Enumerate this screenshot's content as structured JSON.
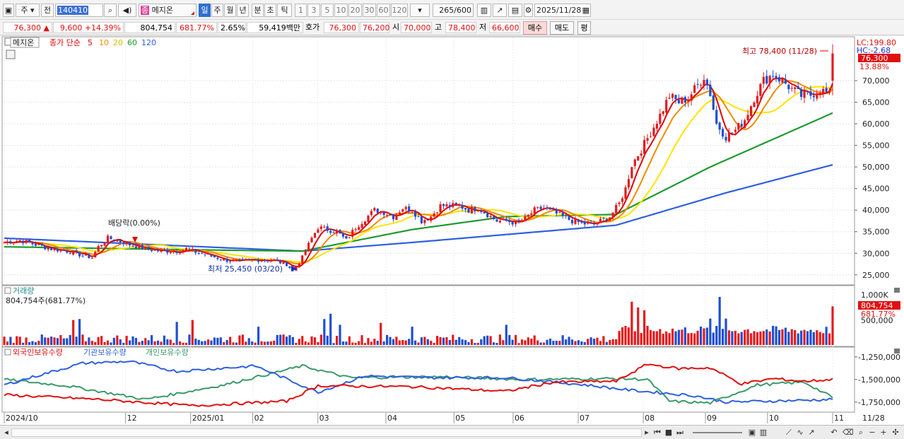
{
  "toolbar": {
    "market": "주",
    "prev": "전",
    "code": "140410",
    "stock_name": "메지온",
    "stock_badge": "종",
    "periods": [
      "일",
      "주",
      "월",
      "년",
      "분",
      "초",
      "틱"
    ],
    "active_period": "일",
    "intervals": [
      "1",
      "3",
      "5",
      "10",
      "20",
      "30",
      "60",
      "120"
    ],
    "count": "265",
    "count_total": "/600",
    "date": "2025/11/28"
  },
  "quote": {
    "price": "76,300",
    "change": "9,600",
    "change_pct": "+14.39%",
    "volume": "804,754",
    "volume_ratio": "681.77%",
    "turnover": "2.65%",
    "amount": "59,419백만",
    "ask_label": "호가",
    "ask": "76,300",
    "bid": "76,200",
    "open_label": "시",
    "open": "70,000",
    "high_label": "고",
    "high": "78,400",
    "low_label": "저",
    "low": "66,600",
    "buy_label": "매수",
    "sell_label": "매도",
    "eval_label": "평"
  },
  "chart_labels": {
    "stock_tag": "메지온",
    "ma_title": "종가 단순",
    "ma_periods": [
      "5",
      "10",
      "20",
      "60",
      "120"
    ],
    "lc": "LC:199.80",
    "hc": "HC:-2.68",
    "last_price_tag": "76,300",
    "last_pct_tag": "13.88%",
    "high_note": "최고 78,400 (11/28)",
    "low_note": "최저 25,450 (03/20)",
    "dividend_note": "배당락(0.00%)",
    "price_axis": [
      "70,000",
      "65,000",
      "60,000",
      "55,000",
      "50,000",
      "45,000",
      "40,000",
      "35,000",
      "30,000",
      "25,000"
    ],
    "volume_title": "거래량",
    "volume_value": "804,754주(681.77%)",
    "volume_axis": [
      "1,000K",
      "500,000"
    ],
    "volume_tag": "804,754",
    "volume_pct_tag": "681.77%",
    "holders": [
      "외국인보유수량",
      "기관보유수량",
      "개인보유수량"
    ],
    "holders_axis": [
      "-1,250,000",
      "-1,500,000",
      "-1,750,000"
    ],
    "x_axis": [
      "2024/10",
      "12",
      "2025/01",
      "02",
      "03",
      "04",
      "05",
      "06",
      "07",
      "08",
      "09",
      "10",
      "11"
    ],
    "x_last": "11/28"
  },
  "colors": {
    "up": "#e41a1c",
    "down": "#1f4fd0",
    "ma5": "#e10000",
    "ma10": "#f08a00",
    "ma20": "#ffe400",
    "ma60": "#1f9a2e",
    "ma120": "#2f5fe0",
    "foreign": "#e01010",
    "institution": "#2f5fe0",
    "individual": "#3a9a6a"
  },
  "chart_data": {
    "type": "candlestick",
    "ylim": [
      23000,
      80000
    ],
    "close_anchors": [
      [
        0,
        32500
      ],
      [
        5,
        33000
      ],
      [
        10,
        32000
      ],
      [
        15,
        31000
      ],
      [
        20,
        30500
      ],
      [
        25,
        29500
      ],
      [
        28,
        29000
      ],
      [
        30,
        31500
      ],
      [
        33,
        33500
      ],
      [
        36,
        33000
      ],
      [
        40,
        32000
      ],
      [
        45,
        31000
      ],
      [
        50,
        30500
      ],
      [
        55,
        30500
      ],
      [
        58,
        31000
      ],
      [
        60,
        30500
      ],
      [
        65,
        29500
      ],
      [
        70,
        28500
      ],
      [
        75,
        28000
      ],
      [
        80,
        28500
      ],
      [
        85,
        28500
      ],
      [
        90,
        27500
      ],
      [
        92,
        26000
      ],
      [
        95,
        29000
      ],
      [
        98,
        33500
      ],
      [
        100,
        36000
      ],
      [
        103,
        35500
      ],
      [
        106,
        35000
      ],
      [
        109,
        33000
      ],
      [
        112,
        36000
      ],
      [
        115,
        38000
      ],
      [
        118,
        40000
      ],
      [
        121,
        39500
      ],
      [
        124,
        38500
      ],
      [
        127,
        40500
      ],
      [
        130,
        40000
      ],
      [
        133,
        37500
      ],
      [
        136,
        38500
      ],
      [
        139,
        41000
      ],
      [
        142,
        41000
      ],
      [
        145,
        41000
      ],
      [
        148,
        40000
      ],
      [
        151,
        40500
      ],
      [
        154,
        39000
      ],
      [
        157,
        37500
      ],
      [
        160,
        37500
      ],
      [
        163,
        37000
      ],
      [
        166,
        38000
      ],
      [
        169,
        40000
      ],
      [
        172,
        40500
      ],
      [
        175,
        39500
      ],
      [
        178,
        38500
      ],
      [
        181,
        37500
      ],
      [
        184,
        37000
      ],
      [
        187,
        36500
      ],
      [
        190,
        37500
      ],
      [
        193,
        38500
      ],
      [
        196,
        41500
      ],
      [
        198,
        45000
      ],
      [
        200,
        50500
      ],
      [
        203,
        54000
      ],
      [
        206,
        58000
      ],
      [
        209,
        62000
      ],
      [
        212,
        66500
      ],
      [
        215,
        65000
      ],
      [
        218,
        66000
      ],
      [
        221,
        69000
      ],
      [
        223,
        71000
      ],
      [
        225,
        67000
      ],
      [
        227,
        60000
      ],
      [
        230,
        57000
      ],
      [
        233,
        58500
      ],
      [
        236,
        61000
      ],
      [
        239,
        66000
      ],
      [
        242,
        70000
      ],
      [
        245,
        71500
      ],
      [
        248,
        70000
      ],
      [
        251,
        68000
      ],
      [
        254,
        66500
      ],
      [
        257,
        66700
      ],
      [
        260,
        68000
      ],
      [
        263,
        66700
      ],
      [
        264,
        76300
      ]
    ],
    "ma60_anchors": [
      [
        0,
        31500
      ],
      [
        60,
        30800
      ],
      [
        95,
        30500
      ],
      [
        130,
        35500
      ],
      [
        160,
        38500
      ],
      [
        195,
        39000
      ],
      [
        225,
        50000
      ],
      [
        264,
        62500
      ]
    ],
    "ma120_anchors": [
      [
        0,
        33500
      ],
      [
        95,
        30500
      ],
      [
        130,
        32500
      ],
      [
        195,
        36500
      ],
      [
        230,
        44000
      ],
      [
        264,
        50500
      ]
    ],
    "volume_spikes": [
      [
        22,
        520
      ],
      [
        24,
        540
      ],
      [
        55,
        480
      ],
      [
        60,
        520
      ],
      [
        81,
        380
      ],
      [
        102,
        540
      ],
      [
        104,
        650
      ],
      [
        107,
        420
      ],
      [
        120,
        460
      ],
      [
        130,
        380
      ],
      [
        160,
        420
      ],
      [
        200,
        900
      ],
      [
        202,
        780
      ],
      [
        204,
        720
      ],
      [
        225,
        550
      ],
      [
        228,
        1000
      ],
      [
        230,
        550
      ],
      [
        264,
        804
      ]
    ],
    "holders": {
      "foreign": [
        [
          0,
          -1670000
        ],
        [
          30,
          -1720000
        ],
        [
          60,
          -1790000
        ],
        [
          90,
          -1740000
        ],
        [
          100,
          -1570000
        ],
        [
          130,
          -1580000
        ],
        [
          160,
          -1630000
        ],
        [
          175,
          -1530000
        ],
        [
          195,
          -1520000
        ],
        [
          205,
          -1330000
        ],
        [
          215,
          -1380000
        ],
        [
          225,
          -1370000
        ],
        [
          235,
          -1550000
        ],
        [
          245,
          -1490000
        ],
        [
          255,
          -1520000
        ],
        [
          264,
          -1500000
        ]
      ],
      "institution": [
        [
          0,
          -1560000
        ],
        [
          25,
          -1320000
        ],
        [
          40,
          -1300000
        ],
        [
          55,
          -1410000
        ],
        [
          80,
          -1350000
        ],
        [
          100,
          -1640000
        ],
        [
          115,
          -1460000
        ],
        [
          135,
          -1480000
        ],
        [
          160,
          -1480000
        ],
        [
          185,
          -1560000
        ],
        [
          200,
          -1620000
        ],
        [
          220,
          -1680000
        ],
        [
          230,
          -1750000
        ],
        [
          255,
          -1730000
        ],
        [
          264,
          -1720000
        ]
      ],
      "individual": [
        [
          0,
          -1500000
        ],
        [
          20,
          -1570000
        ],
        [
          45,
          -1720000
        ],
        [
          70,
          -1560000
        ],
        [
          95,
          -1350000
        ],
        [
          110,
          -1480000
        ],
        [
          140,
          -1470000
        ],
        [
          165,
          -1500000
        ],
        [
          195,
          -1490000
        ],
        [
          205,
          -1500000
        ],
        [
          212,
          -1740000
        ],
        [
          225,
          -1760000
        ],
        [
          240,
          -1560000
        ],
        [
          255,
          -1530000
        ],
        [
          264,
          -1700000
        ]
      ]
    }
  }
}
